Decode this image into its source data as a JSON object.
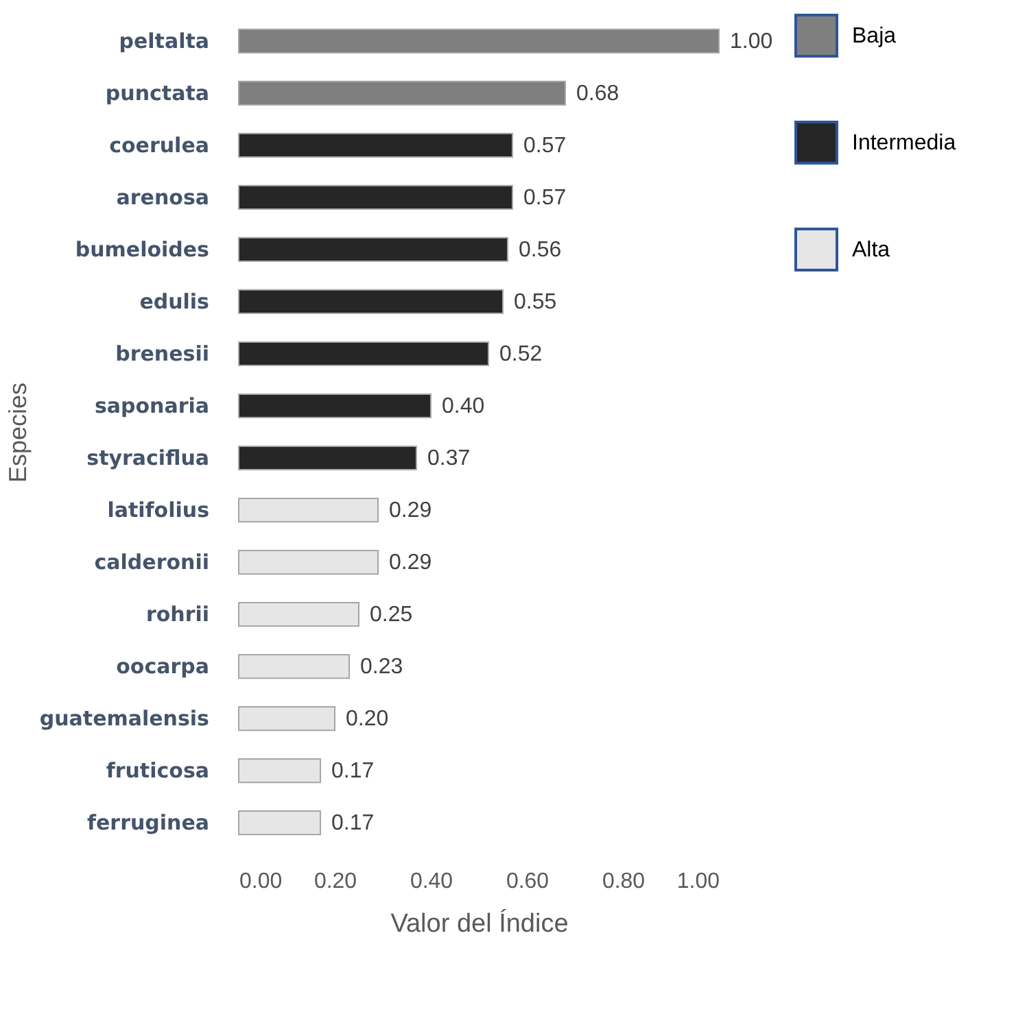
{
  "chart_data": {
    "type": "bar",
    "orientation": "horizontal",
    "xlabel": "Valor del Índice",
    "ylabel": "Especies",
    "categories": [
      "peltalta",
      "punctata",
      "coerulea",
      "arenosa",
      "bumeloides",
      "edulis",
      "brenesii",
      "saponaria",
      "styraciflua",
      "latifolius",
      "calderonii",
      "rohrii",
      "oocarpa",
      "guatemalensis",
      "fruticosa",
      "ferruginea"
    ],
    "series": [
      {
        "name": "Baja",
        "color": "#7f7f7f",
        "values": [
          1,
          0.68,
          null,
          null,
          null,
          null,
          null,
          null,
          null,
          null,
          null,
          null,
          null,
          null,
          null,
          null
        ],
        "value_labels": [
          "1.00",
          "0.68",
          null,
          null,
          null,
          null,
          null,
          null,
          null,
          null,
          null,
          null,
          null,
          null,
          null,
          null
        ]
      },
      {
        "name": "Intermedia",
        "color": "#262626",
        "values": [
          null,
          null,
          0.57,
          0.57,
          0.56,
          0.55,
          0.52,
          0.4,
          0.37,
          null,
          null,
          null,
          null,
          null,
          null,
          null
        ],
        "value_labels": [
          null,
          null,
          "0.57",
          "0.57",
          "0.56",
          "0.55",
          "0.52",
          "0.40",
          "0.37",
          null,
          null,
          null,
          null,
          null,
          null,
          null
        ]
      },
      {
        "name": "Alta",
        "color": "#e6e6e6",
        "values": [
          null,
          null,
          null,
          null,
          null,
          null,
          null,
          null,
          null,
          0.29,
          0.29,
          0.25,
          0.23,
          0.2,
          0.17,
          0.17
        ],
        "value_labels": [
          null,
          null,
          null,
          null,
          null,
          null,
          null,
          null,
          null,
          "0.29",
          "0.29",
          "0.25",
          "0.23",
          "0.20",
          "0.17",
          "0.17"
        ]
      }
    ],
    "xlim": [
      0,
      1
    ],
    "xticks": [
      {
        "value": 0,
        "label": "0.00"
      },
      {
        "value": 0.2,
        "label": "0.20"
      },
      {
        "value": 0.4,
        "label": "0.40"
      },
      {
        "value": 0.6,
        "label": "0.60"
      },
      {
        "value": 0.8,
        "label": "0.80"
      },
      {
        "value": 1,
        "label": "1.00"
      }
    ],
    "grid": false,
    "legend": "right"
  }
}
